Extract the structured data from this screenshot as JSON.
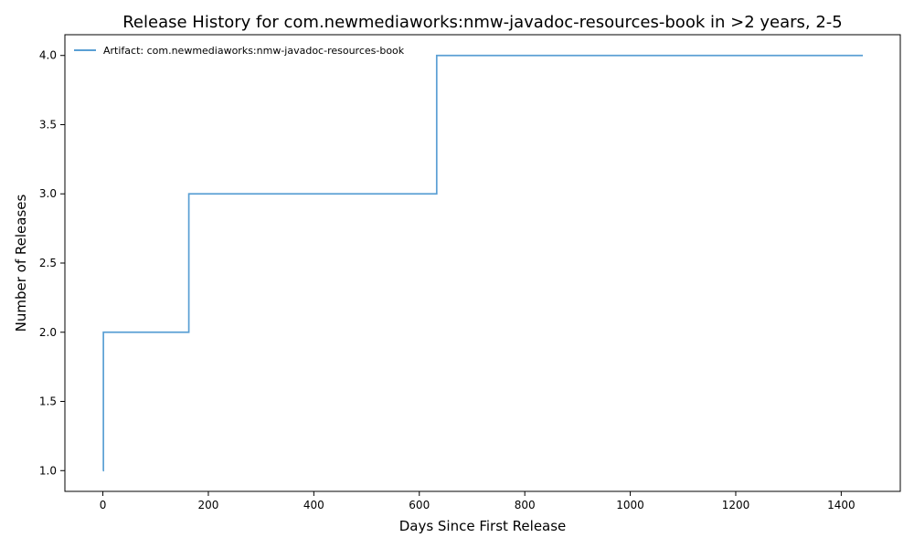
{
  "chart_data": {
    "type": "line",
    "step": "post",
    "title": "Release History for com.newmediaworks:nmw-javadoc-resources-book in >2 years, 2-5",
    "xlabel": "Days Since First Release",
    "ylabel": "Number of Releases",
    "xlim": [
      -72,
      1512
    ],
    "ylim": [
      0.85,
      4.15
    ],
    "xticks": [
      0,
      200,
      400,
      600,
      800,
      1000,
      1200,
      1400
    ],
    "yticks": [
      1.0,
      1.5,
      2.0,
      2.5,
      3.0,
      3.5,
      4.0
    ],
    "xtick_labels": [
      "0",
      "200",
      "400",
      "600",
      "800",
      "1000",
      "1200",
      "1400"
    ],
    "ytick_labels": [
      "1.0",
      "1.5",
      "2.0",
      "2.5",
      "3.0",
      "3.5",
      "4.0"
    ],
    "grid": false,
    "legend_position": "top-left",
    "series": [
      {
        "name": "Artifact: com.newmediaworks:nmw-javadoc-resources-book",
        "color": "#5a9fd4",
        "x": [
          0,
          1,
          163,
          633,
          1441
        ],
        "y": [
          1,
          2,
          3,
          4,
          4
        ]
      }
    ]
  }
}
